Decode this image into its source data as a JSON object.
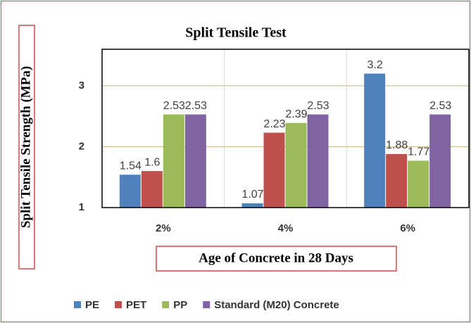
{
  "chart_data": {
    "type": "bar",
    "title": "Split Tensile Test",
    "xlabel": "Age of Concrete in 28 Days",
    "ylabel": "Split Tensile Strength (MPa)",
    "categories": [
      "2%",
      "4%",
      "6%"
    ],
    "series": [
      {
        "name": "PE",
        "color": "#4f81bd",
        "values": [
          1.54,
          1.07,
          3.2
        ]
      },
      {
        "name": "PET",
        "color": "#c0504d",
        "values": [
          1.6,
          2.23,
          1.88
        ]
      },
      {
        "name": "PP",
        "color": "#9bbb59",
        "values": [
          2.53,
          2.39,
          1.77
        ]
      },
      {
        "name": "Standard (M20) Concrete",
        "color": "#8064a2",
        "values": [
          2.53,
          2.53,
          2.53
        ]
      }
    ],
    "ylim": [
      1,
      3.6
    ],
    "yticks": [
      1,
      2,
      3
    ],
    "grid": true,
    "legend": "bottom"
  }
}
